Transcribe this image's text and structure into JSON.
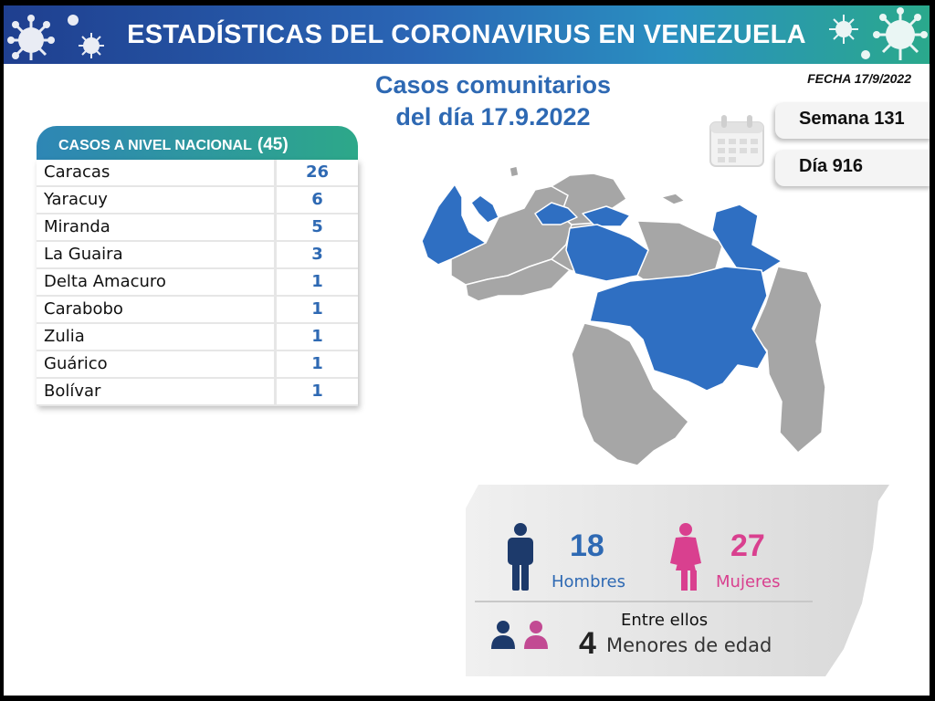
{
  "banner": {
    "title": "ESTADÍSTICAS DEL CORONAVIRUS EN VENEZUELA"
  },
  "date_label": "FECHA 17/9/2022",
  "headline": {
    "line1": "Casos comunitarios",
    "line2": "del día 17.9.2022"
  },
  "week_label": "Semana 131",
  "day_label": "Día 916",
  "table": {
    "title": "CASOS A NIVEL NACIONAL",
    "total": "(45)",
    "rows": [
      {
        "name": "Caracas",
        "value": "26"
      },
      {
        "name": "Yaracuy",
        "value": "6"
      },
      {
        "name": "Miranda",
        "value": "5"
      },
      {
        "name": "La Guaira",
        "value": "3"
      },
      {
        "name": "Delta Amacuro",
        "value": "1"
      },
      {
        "name": "Carabobo",
        "value": "1"
      },
      {
        "name": "Zulia",
        "value": "1"
      },
      {
        "name": "Guárico",
        "value": "1"
      },
      {
        "name": "Bolívar",
        "value": "1"
      }
    ]
  },
  "stats": {
    "men_count": "18",
    "men_label": "Hombres",
    "women_count": "27",
    "women_label": "Mujeres",
    "minors_intro": "Entre ellos",
    "minors_count": "4",
    "minors_label": "Menores de edad"
  },
  "colors": {
    "accent_blue": "#2e69b3",
    "women_pink": "#d9408f",
    "men_navy": "#1d3a6b",
    "map_highlight": "#2f6fc2",
    "map_base": "#a6a6a6"
  }
}
